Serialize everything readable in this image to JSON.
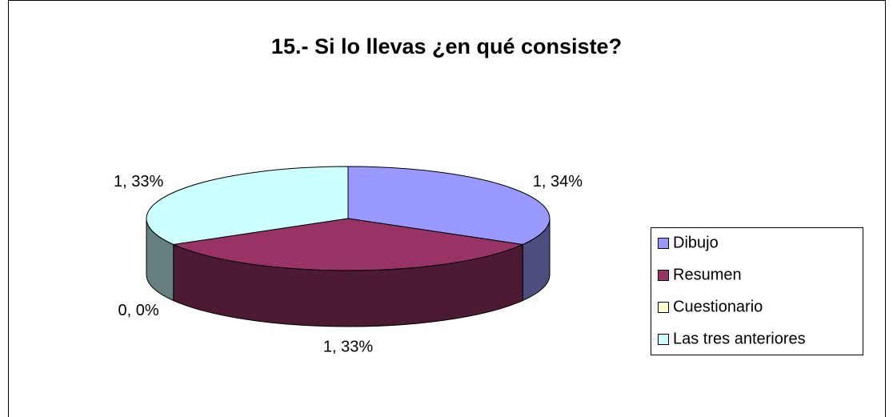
{
  "chart_data": {
    "type": "pie",
    "title": "15.- Si lo llevas ¿en qué consiste?",
    "categories": [
      "Dibujo",
      "Resumen",
      "Cuestionario",
      "Las tres anteriores"
    ],
    "values": [
      1,
      1,
      0,
      1
    ],
    "value_labels": [
      "1, 34%",
      "1, 33%",
      "0, 0%",
      "1, 33%"
    ],
    "colors": [
      "#9999FF",
      "#993366",
      "#FFFFCC",
      "#CCFFFF"
    ],
    "legend": "right"
  }
}
